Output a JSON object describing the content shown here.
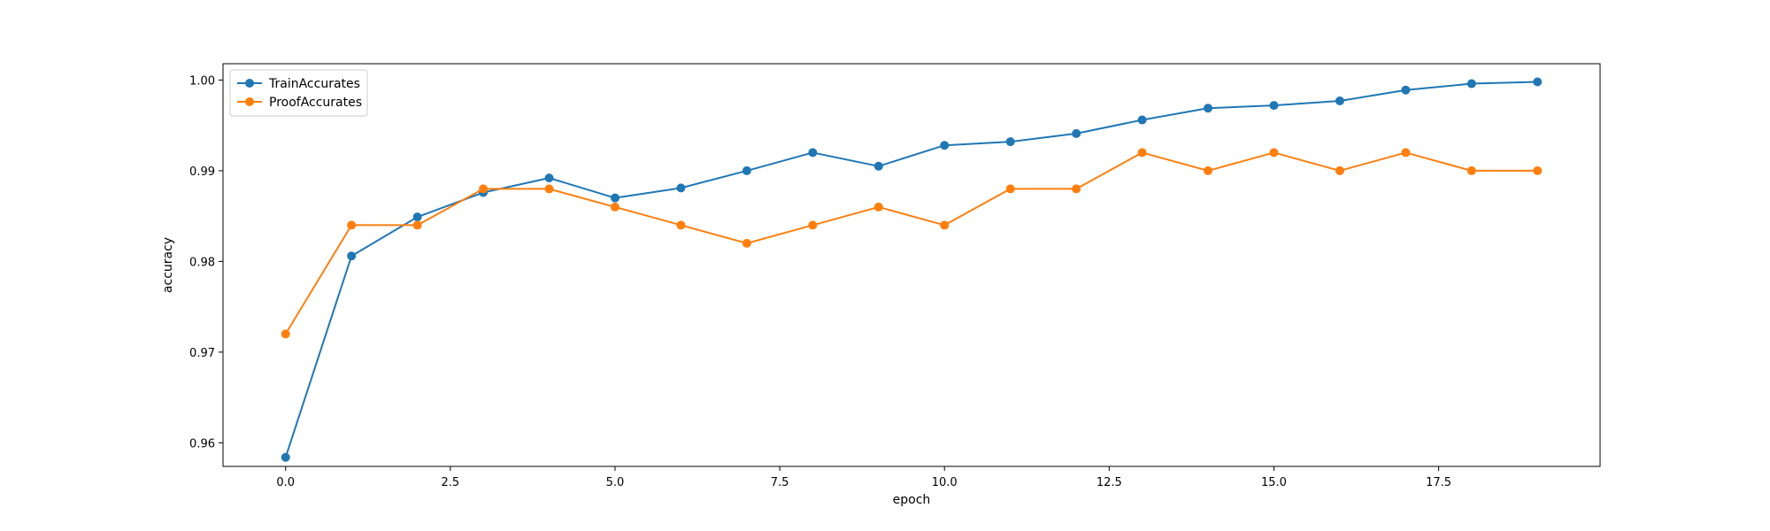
{
  "chart_data": {
    "type": "line",
    "title": "",
    "xlabel": "epoch",
    "ylabel": "accuracy",
    "xlim": [
      -0.95,
      19.95
    ],
    "ylim": [
      0.9574,
      1.0018
    ],
    "x_ticks": [
      0.0,
      2.5,
      5.0,
      7.5,
      10.0,
      12.5,
      15.0,
      17.5
    ],
    "x_tick_labels": [
      "0.0",
      "2.5",
      "5.0",
      "7.5",
      "10.0",
      "12.5",
      "15.0",
      "17.5"
    ],
    "y_ticks": [
      0.96,
      0.97,
      0.98,
      0.99,
      1.0
    ],
    "y_tick_labels": [
      "0.96",
      "0.97",
      "0.98",
      "0.99",
      "1.00"
    ],
    "grid": false,
    "legend_position": "top-left",
    "x": [
      0,
      1,
      2,
      3,
      4,
      5,
      6,
      7,
      8,
      9,
      10,
      11,
      12,
      13,
      14,
      15,
      16,
      17,
      18,
      19
    ],
    "series": [
      {
        "name": "TrainAccurates",
        "color": "#1f77b4",
        "marker": "circle",
        "values": [
          0.9584,
          0.9806,
          0.9849,
          0.9876,
          0.9892,
          0.987,
          0.9881,
          0.99,
          0.992,
          0.9905,
          0.9928,
          0.9932,
          0.9941,
          0.9956,
          0.9969,
          0.9972,
          0.9977,
          0.9989,
          0.9996,
          0.9998
        ]
      },
      {
        "name": "ProofAccurates",
        "color": "#ff7f0e",
        "marker": "circle",
        "values": [
          0.972,
          0.984,
          0.984,
          0.988,
          0.988,
          0.986,
          0.984,
          0.982,
          0.984,
          0.986,
          0.984,
          0.988,
          0.988,
          0.992,
          0.99,
          0.992,
          0.99,
          0.992,
          0.99,
          0.99
        ]
      }
    ]
  }
}
